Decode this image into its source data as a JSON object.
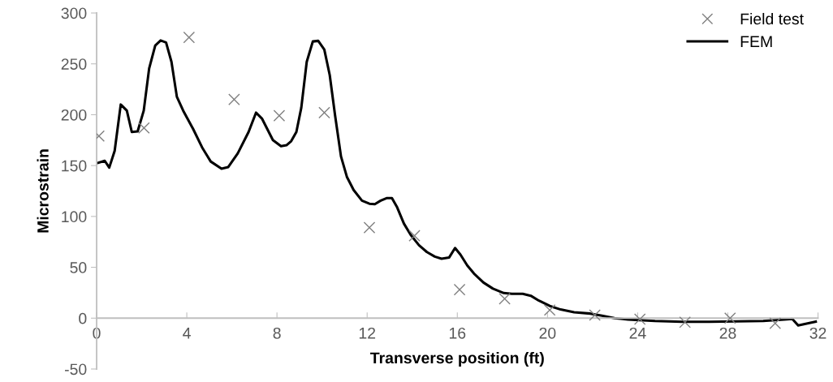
{
  "chart_data": {
    "type": "line",
    "xlabel": "Transverse position (ft)",
    "ylabel": "Microstrain",
    "xlim": [
      0,
      32
    ],
    "xticks": [
      0,
      4,
      8,
      12,
      16,
      20,
      24,
      28,
      32
    ],
    "ylim": [
      -50,
      300
    ],
    "yticks": [
      -50,
      0,
      50,
      100,
      150,
      200,
      250,
      300
    ],
    "grid": false,
    "legend": "top right",
    "series": [
      {
        "name": "Field test",
        "type": "scatter",
        "marker": "cross",
        "color": "#808080",
        "x": [
          0.1,
          2.1,
          4.1,
          6.1,
          8.1,
          10.1,
          12.1,
          14.1,
          16.1,
          18.1,
          20.1,
          22.1,
          24.1,
          26.1,
          28.1,
          30.1
        ],
        "values": [
          179,
          187,
          276,
          215,
          199,
          202,
          89,
          81,
          28,
          19,
          8,
          3,
          -1,
          -4,
          0,
          -5
        ]
      },
      {
        "name": "FEM",
        "marker": "none",
        "line_style": "solid",
        "color": "#000000",
        "x": [
          0.05,
          0.36,
          0.56,
          0.8,
          1.07,
          1.34,
          1.56,
          1.82,
          2.09,
          2.33,
          2.6,
          2.84,
          3.08,
          3.32,
          3.56,
          3.84,
          4.28,
          4.7,
          5.06,
          5.54,
          5.84,
          6.26,
          6.74,
          7.07,
          7.34,
          7.82,
          8.18,
          8.42,
          8.63,
          8.86,
          9.08,
          9.32,
          9.59,
          9.83,
          10.1,
          10.34,
          10.58,
          10.84,
          11.1,
          11.4,
          11.77,
          12.1,
          12.34,
          12.6,
          12.86,
          13.1,
          13.33,
          13.63,
          13.93,
          14.3,
          14.65,
          15.0,
          15.3,
          15.64,
          15.9,
          16.14,
          16.44,
          16.74,
          17.16,
          17.58,
          18.06,
          18.42,
          18.9,
          19.26,
          19.62,
          20.1,
          20.58,
          21.18,
          21.9,
          22.37,
          22.97,
          23.57,
          24.77,
          25.97,
          27.17,
          28.37,
          29.57,
          30.5,
          30.86,
          31.12,
          31.9
        ],
        "values": [
          152.6,
          154.7,
          148,
          164.5,
          210,
          204,
          183,
          183.6,
          204,
          245.5,
          268,
          273,
          271,
          252,
          217.6,
          204,
          186,
          167,
          154,
          147,
          148.6,
          162,
          183,
          202,
          196,
          175,
          169,
          170,
          174,
          183,
          207,
          252,
          272,
          272.6,
          264,
          239,
          199,
          159,
          139,
          126,
          115.5,
          112.5,
          112,
          115.5,
          118,
          118,
          109,
          93,
          82,
          71.7,
          65,
          60.5,
          58.4,
          59.7,
          69,
          62.4,
          51.8,
          43.8,
          35,
          29,
          24.7,
          23.9,
          23.9,
          22,
          17.2,
          12,
          8.5,
          5.8,
          4.5,
          2.7,
          0,
          -1.3,
          -2.7,
          -3.5,
          -3.5,
          -3.2,
          -2.7,
          -1.3,
          -0.8,
          -7.2,
          -3.5
        ]
      }
    ]
  }
}
